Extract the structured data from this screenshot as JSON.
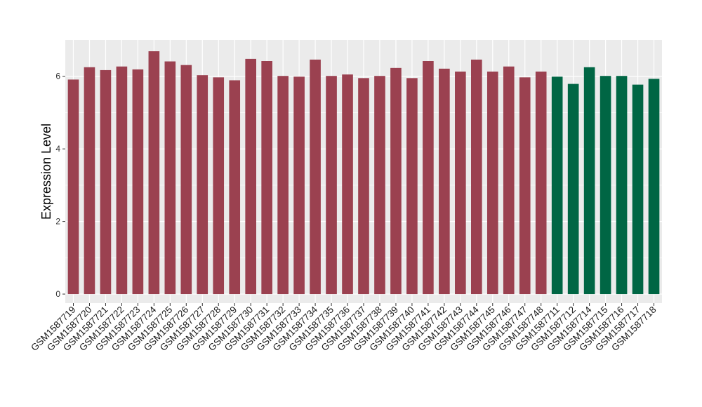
{
  "chart_data": {
    "type": "bar",
    "title": "",
    "xlabel": "",
    "ylabel": "Expression Level",
    "ylim": [
      -0.25,
      7.0
    ],
    "yticks": [
      0,
      2,
      4,
      6
    ],
    "grid": true,
    "legend": "none",
    "colors": {
      "group1": "#9b4150",
      "group2": "#006644",
      "panel": "#ebebeb",
      "grid": "#ffffff"
    },
    "categories": [
      "GSM1587719",
      "GSM1587720",
      "GSM1587721",
      "GSM1587722",
      "GSM1587723",
      "GSM1587724",
      "GSM1587725",
      "GSM1587726",
      "GSM1587727",
      "GSM1587728",
      "GSM1587729",
      "GSM1587730",
      "GSM1587731",
      "GSM1587732",
      "GSM1587733",
      "GSM1587734",
      "GSM1587735",
      "GSM1587736",
      "GSM1587737",
      "GSM1587738",
      "GSM1587739",
      "GSM1587740",
      "GSM1587741",
      "GSM1587742",
      "GSM1587743",
      "GSM1587744",
      "GSM1587745",
      "GSM1587746",
      "GSM1587747",
      "GSM1587748",
      "GSM1587711",
      "GSM1587712",
      "GSM1587714",
      "GSM1587715",
      "GSM1587716",
      "GSM1587717",
      "GSM1587718"
    ],
    "values": [
      5.91,
      6.25,
      6.17,
      6.27,
      6.19,
      6.69,
      6.41,
      6.31,
      6.03,
      5.97,
      5.89,
      6.48,
      6.42,
      6.01,
      5.99,
      6.46,
      6.01,
      6.05,
      5.95,
      6.01,
      6.23,
      5.95,
      6.42,
      6.21,
      6.13,
      6.46,
      6.13,
      6.27,
      5.97,
      6.13,
      5.99,
      5.79,
      6.25,
      6.01,
      6.01,
      5.77,
      5.93
    ],
    "groups": [
      "group1",
      "group1",
      "group1",
      "group1",
      "group1",
      "group1",
      "group1",
      "group1",
      "group1",
      "group1",
      "group1",
      "group1",
      "group1",
      "group1",
      "group1",
      "group1",
      "group1",
      "group1",
      "group1",
      "group1",
      "group1",
      "group1",
      "group1",
      "group1",
      "group1",
      "group1",
      "group1",
      "group1",
      "group1",
      "group1",
      "group2",
      "group2",
      "group2",
      "group2",
      "group2",
      "group2",
      "group2"
    ]
  }
}
